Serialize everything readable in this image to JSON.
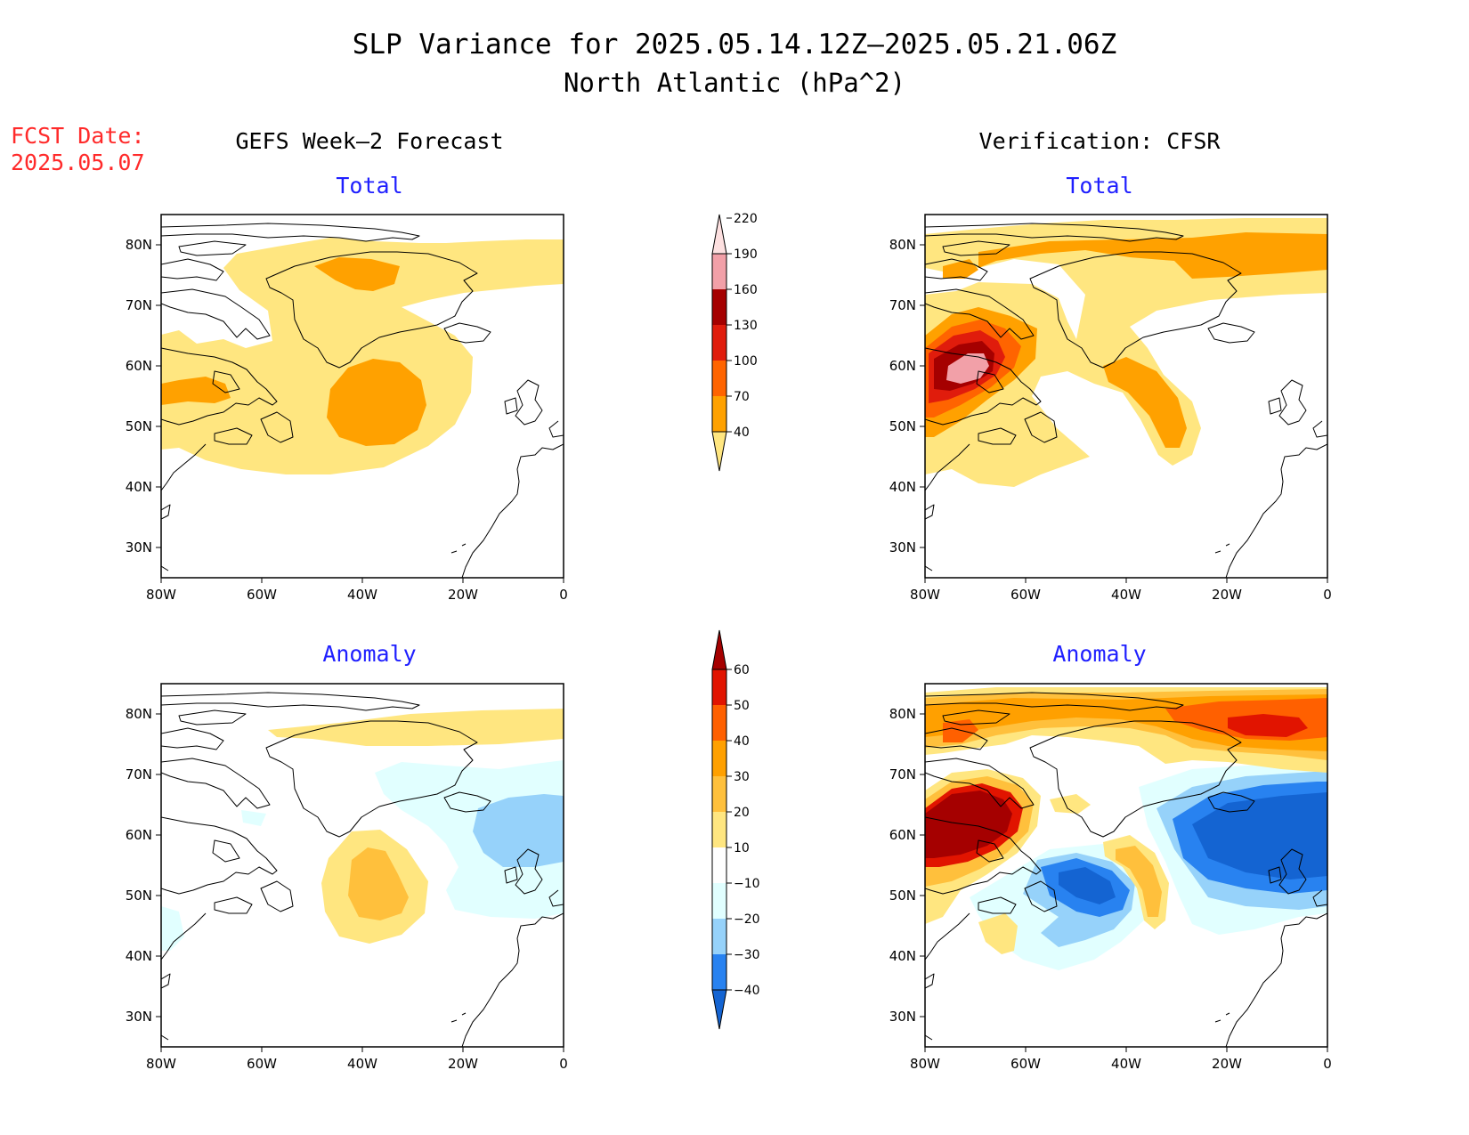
{
  "title": "SLP Variance for 2025.05.14.12Z–2025.05.21.06Z",
  "subtitle": "North Atlantic (hPa^2)",
  "forecast_date": {
    "label": "FCST Date:",
    "value": "2025.05.07"
  },
  "columns": {
    "left": "GEFS Week–2 Forecast",
    "right": "Verification: CFSR"
  },
  "rows": {
    "top": "Total",
    "bottom": "Anomaly"
  },
  "axes": {
    "lat_labels": [
      "80N",
      "70N",
      "60N",
      "50N",
      "40N",
      "30N"
    ],
    "lon_labels": [
      "80W",
      "60W",
      "40W",
      "20W",
      "0"
    ],
    "lat_range": [
      25,
      85
    ],
    "lon_range": [
      -80,
      0
    ]
  },
  "colorbars": {
    "total": {
      "levels": [
        "40",
        "70",
        "100",
        "130",
        "160",
        "190",
        "220"
      ],
      "colors": [
        "#ffe680",
        "#ffa100",
        "#ff6400",
        "#e01c0c",
        "#a50000",
        "#f2a0a8",
        "#fde0e0"
      ]
    },
    "anomaly": {
      "levels": [
        "−40",
        "−30",
        "−20",
        "−10",
        "10",
        "20",
        "30",
        "40",
        "50",
        "60"
      ],
      "colors": [
        "#1464d2",
        "#2882f0",
        "#96d2fa",
        "#e1ffff",
        "#ffffff",
        "#ffe680",
        "#ffc03c",
        "#ffa000",
        "#ff6000",
        "#e11400",
        "#a50000"
      ]
    }
  },
  "panels": [
    {
      "id": "forecast-total",
      "column": "GEFS Week–2 Forecast",
      "row": "Total",
      "features": [
        {
          "level": 40,
          "desc": "broad variance above 40 over North Atlantic and Greenland"
        },
        {
          "level": 70,
          "desc": "maximum near 55N 38W"
        },
        {
          "level": 70,
          "desc": "maximum near 78N 37W"
        },
        {
          "level": 70,
          "desc": "maximum near 57N 75W"
        }
      ]
    },
    {
      "id": "verification-total",
      "column": "Verification: CFSR",
      "row": "Total",
      "features": [
        {
          "level": 190,
          "desc": "maximum near 59N 70W (Labrador)"
        },
        {
          "level": 70,
          "desc": "band near 53N 30W"
        },
        {
          "level": 70,
          "desc": "band near 80N 10W"
        }
      ]
    },
    {
      "id": "forecast-anomaly",
      "column": "GEFS Week–2 Forecast",
      "row": "Anomaly",
      "features": [
        {
          "level": 20,
          "desc": "positive anomaly near 52N 37W"
        },
        {
          "level": -20,
          "desc": "negative anomaly near 62N 10W"
        }
      ]
    },
    {
      "id": "verification-anomaly",
      "column": "Verification: CFSR",
      "row": "Anomaly",
      "features": [
        {
          "level": 60,
          "desc": "positive anomaly near 59N 73W"
        },
        {
          "level": 50,
          "desc": "positive anomaly near 80N 10W"
        },
        {
          "level": -40,
          "desc": "negative anomaly near 50N 45W"
        },
        {
          "level": -40,
          "desc": "negative anomaly near 60N 12W"
        }
      ]
    }
  ]
}
